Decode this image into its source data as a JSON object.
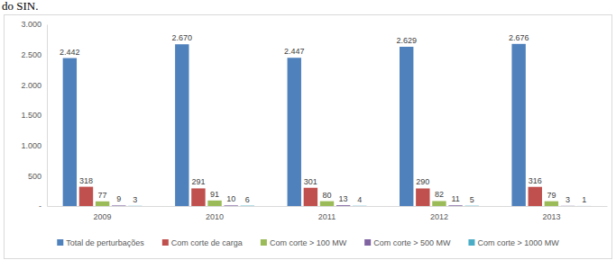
{
  "caption": "do SIN.",
  "chart_data": {
    "type": "bar",
    "categories": [
      "2009",
      "2010",
      "2011",
      "2012",
      "2013"
    ],
    "series": [
      {
        "name": "Total de perturbações",
        "color": "#4f81bd",
        "values": [
          2442,
          2670,
          2447,
          2629,
          2676
        ],
        "value_labels": [
          "2.442",
          "2.670",
          "2.447",
          "2.629",
          "2.676"
        ]
      },
      {
        "name": "Com corte de carga",
        "color": "#c0504d",
        "values": [
          318,
          291,
          301,
          290,
          316
        ]
      },
      {
        "name": "Com corte > 100 MW",
        "color": "#9bbb59",
        "values": [
          77,
          91,
          80,
          82,
          79
        ]
      },
      {
        "name": "Com corte > 500 MW",
        "color": "#8064a2",
        "values": [
          9,
          10,
          13,
          11,
          3
        ]
      },
      {
        "name": "Com corte > 1000 MW",
        "color": "#4bacc6",
        "values": [
          3,
          6,
          4,
          5,
          1
        ]
      }
    ],
    "ylim": [
      0,
      3000
    ],
    "yticks": [
      {
        "value": 0,
        "label": "-"
      },
      500,
      {
        "value": 1000,
        "label": "1.000"
      },
      {
        "value": 1500,
        "label": "1.500"
      },
      {
        "value": 2000,
        "label": "2.000"
      },
      {
        "value": 2500,
        "label": "2.500"
      },
      {
        "value": 3000,
        "label": "3.000"
      }
    ],
    "grid": false,
    "legend": "bottom",
    "data_labels": true
  }
}
